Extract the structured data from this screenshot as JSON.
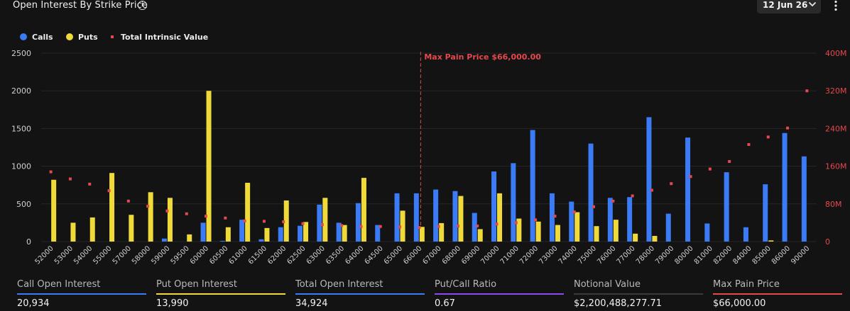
{
  "header": {
    "title": "Open Interest By Strike Price",
    "info_glyph": "i",
    "date_selected": "12 Jun 26"
  },
  "colors": {
    "background": "#131313",
    "calls": "#3b7bf6",
    "puts": "#f0da3a",
    "intrinsic": "#e5484d",
    "grid": "#262626",
    "axis_text": "#d0d0d0",
    "right_axis_text": "#e5484d"
  },
  "chart_data": {
    "type": "bar",
    "legend": {
      "placement": "top-left",
      "items": [
        {
          "name": "Calls",
          "marker": "circle",
          "color": "#3b7bf6"
        },
        {
          "name": "Puts",
          "marker": "circle",
          "color": "#f0da3a"
        },
        {
          "name": "Total Intrinsic Value",
          "marker": "dot",
          "color": "#e5484d"
        }
      ]
    },
    "categories": [
      "52000",
      "53000",
      "54000",
      "55000",
      "57000",
      "58000",
      "59000",
      "59500",
      "60000",
      "60500",
      "61000",
      "61500",
      "62000",
      "62500",
      "63000",
      "63500",
      "64000",
      "64500",
      "65000",
      "66000",
      "67000",
      "68000",
      "69000",
      "70000",
      "71000",
      "72000",
      "73000",
      "74000",
      "75000",
      "76000",
      "77000",
      "78000",
      "79000",
      "80000",
      "81000",
      "82000",
      "84000",
      "85000",
      "86000",
      "90000"
    ],
    "series": [
      {
        "name": "Calls",
        "axis": "left",
        "values": [
          0,
          0,
          0,
          0,
          0,
          0,
          40,
          0,
          250,
          10,
          290,
          30,
          190,
          210,
          490,
          250,
          510,
          220,
          640,
          640,
          690,
          670,
          380,
          930,
          1040,
          1480,
          640,
          530,
          1300,
          580,
          590,
          1650,
          370,
          1380,
          240,
          920,
          190,
          760,
          1440,
          1130
        ]
      },
      {
        "name": "Puts",
        "axis": "left",
        "values": [
          820,
          250,
          320,
          910,
          355,
          655,
          580,
          95,
          2000,
          190,
          780,
          180,
          545,
          260,
          580,
          220,
          845,
          0,
          410,
          195,
          245,
          605,
          165,
          640,
          305,
          265,
          220,
          390,
          205,
          290,
          105,
          75,
          0,
          0,
          0,
          0,
          0,
          15,
          0,
          0
        ]
      },
      {
        "name": "Total Intrinsic Value",
        "axis": "right",
        "values": [
          148,
          133,
          122,
          108,
          86,
          75,
          65,
          59,
          54,
          50,
          44,
          43,
          42,
          38,
          36,
          34,
          32,
          32,
          31,
          30,
          32,
          33,
          33,
          37,
          40,
          46,
          54,
          63,
          74,
          86,
          97,
          109,
          123,
          138,
          154,
          170,
          206,
          222,
          241,
          320
        ]
      }
    ],
    "y_left": {
      "ylim": [
        0,
        2500
      ],
      "ticks": [
        0,
        500,
        1000,
        1500,
        2000,
        2500
      ],
      "tick_labels": [
        "0",
        "500",
        "1000",
        "1500",
        "2000",
        "2500"
      ]
    },
    "y_right": {
      "ylim": [
        0,
        400
      ],
      "unit": "M",
      "ticks": [
        0,
        80,
        160,
        240,
        320,
        400
      ],
      "tick_labels": [
        "0",
        "80M",
        "160M",
        "240M",
        "320M",
        "400M"
      ]
    },
    "grid": true,
    "annotation": {
      "label": "Max Pain Price $66,000.00",
      "at_category": "66000",
      "style": "dashed-vertical",
      "color": "#e5484d"
    }
  },
  "stats": [
    {
      "label": "Call Open Interest",
      "value": "20,934",
      "color": "#3b7bf6"
    },
    {
      "label": "Put Open Interest",
      "value": "13,990",
      "color": "#f0da3a"
    },
    {
      "label": "Total Open Interest",
      "value": "34,924",
      "color": "#3b7bf6"
    },
    {
      "label": "Put/Call Ratio",
      "value": "0.67",
      "color": "#8a4bf2"
    },
    {
      "label": "Notional Value",
      "value": "$2,200,488,277.71",
      "color": "#3a3a3a"
    },
    {
      "label": "Max Pain Price",
      "value": "$66,000.00",
      "color": "#e5484d"
    }
  ]
}
